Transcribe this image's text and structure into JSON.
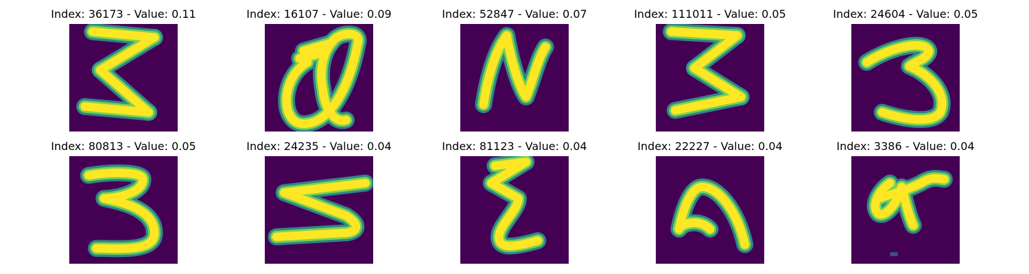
{
  "figure": {
    "colors": {
      "background": "#440154",
      "stroke_outer": "#2a9d8f",
      "stroke_mid": "#7ad151",
      "stroke_core": "#fde725"
    },
    "panels": [
      {
        "title": "Index: 36173 - Value: 0.11",
        "index": 36173,
        "value": 0.11,
        "glyph": "3"
      },
      {
        "title": "Index: 16107 - Value: 0.09",
        "index": 16107,
        "value": 0.09,
        "glyph": "a"
      },
      {
        "title": "Index: 52847 - Value: 0.07",
        "index": 52847,
        "value": 0.07,
        "glyph": "N"
      },
      {
        "title": "Index: 111011 - Value: 0.05",
        "index": 111011,
        "value": 0.05,
        "glyph": "3"
      },
      {
        "title": "Index: 24604 - Value: 0.05",
        "index": 24604,
        "value": 0.05,
        "glyph": "3"
      },
      {
        "title": "Index: 80813 - Value: 0.05",
        "index": 80813,
        "value": 0.05,
        "glyph": "3"
      },
      {
        "title": "Index: 24235 - Value: 0.04",
        "index": 24235,
        "value": 0.04,
        "glyph": "5"
      },
      {
        "title": "Index: 81123 - Value: 0.04",
        "index": 81123,
        "value": 0.04,
        "glyph": "z"
      },
      {
        "title": "Index: 22227 - Value: 0.04",
        "index": 22227,
        "value": 0.04,
        "glyph": "n"
      },
      {
        "title": "Index: 3386 - Value: 0.04",
        "index": 3386,
        "value": 0.04,
        "glyph": "a"
      }
    ]
  }
}
